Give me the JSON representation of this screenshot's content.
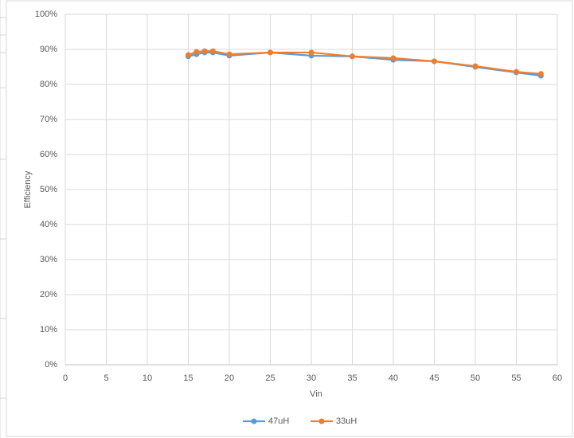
{
  "chart_data": {
    "type": "line",
    "x_label": "Vin",
    "y_label": "Efficiency",
    "xlim": [
      0,
      60
    ],
    "xticks": [
      0,
      5,
      10,
      15,
      20,
      25,
      30,
      35,
      40,
      45,
      50,
      55,
      60
    ],
    "ylim": [
      0,
      100
    ],
    "yticks": [
      {
        "value": 0,
        "label": "0%"
      },
      {
        "value": 10,
        "label": "10%"
      },
      {
        "value": 20,
        "label": "20%"
      },
      {
        "value": 30,
        "label": "30%"
      },
      {
        "value": 40,
        "label": "40%"
      },
      {
        "value": 50,
        "label": "50%"
      },
      {
        "value": 60,
        "label": "60%"
      },
      {
        "value": 70,
        "label": "70%"
      },
      {
        "value": 80,
        "label": "80%"
      },
      {
        "value": 90,
        "label": "90%"
      },
      {
        "value": 100,
        "label": "100%"
      }
    ],
    "grid": true,
    "legend": "bottom",
    "x": [
      15,
      16,
      17,
      18,
      20,
      25,
      30,
      35,
      40,
      45,
      50,
      55,
      58
    ],
    "series": [
      {
        "name": "47uH",
        "color": "#5b9bd5",
        "values": [
          88.0,
          88.6,
          89.1,
          89.1,
          88.2,
          89.1,
          88.2,
          88.0,
          87.0,
          86.6,
          85.0,
          83.4,
          82.5
        ]
      },
      {
        "name": "33uH",
        "color": "#ed7d31",
        "values": [
          88.4,
          89.3,
          89.5,
          89.5,
          88.6,
          89.1,
          89.1,
          88.0,
          87.5,
          86.6,
          85.2,
          83.6,
          83.0
        ]
      }
    ]
  }
}
